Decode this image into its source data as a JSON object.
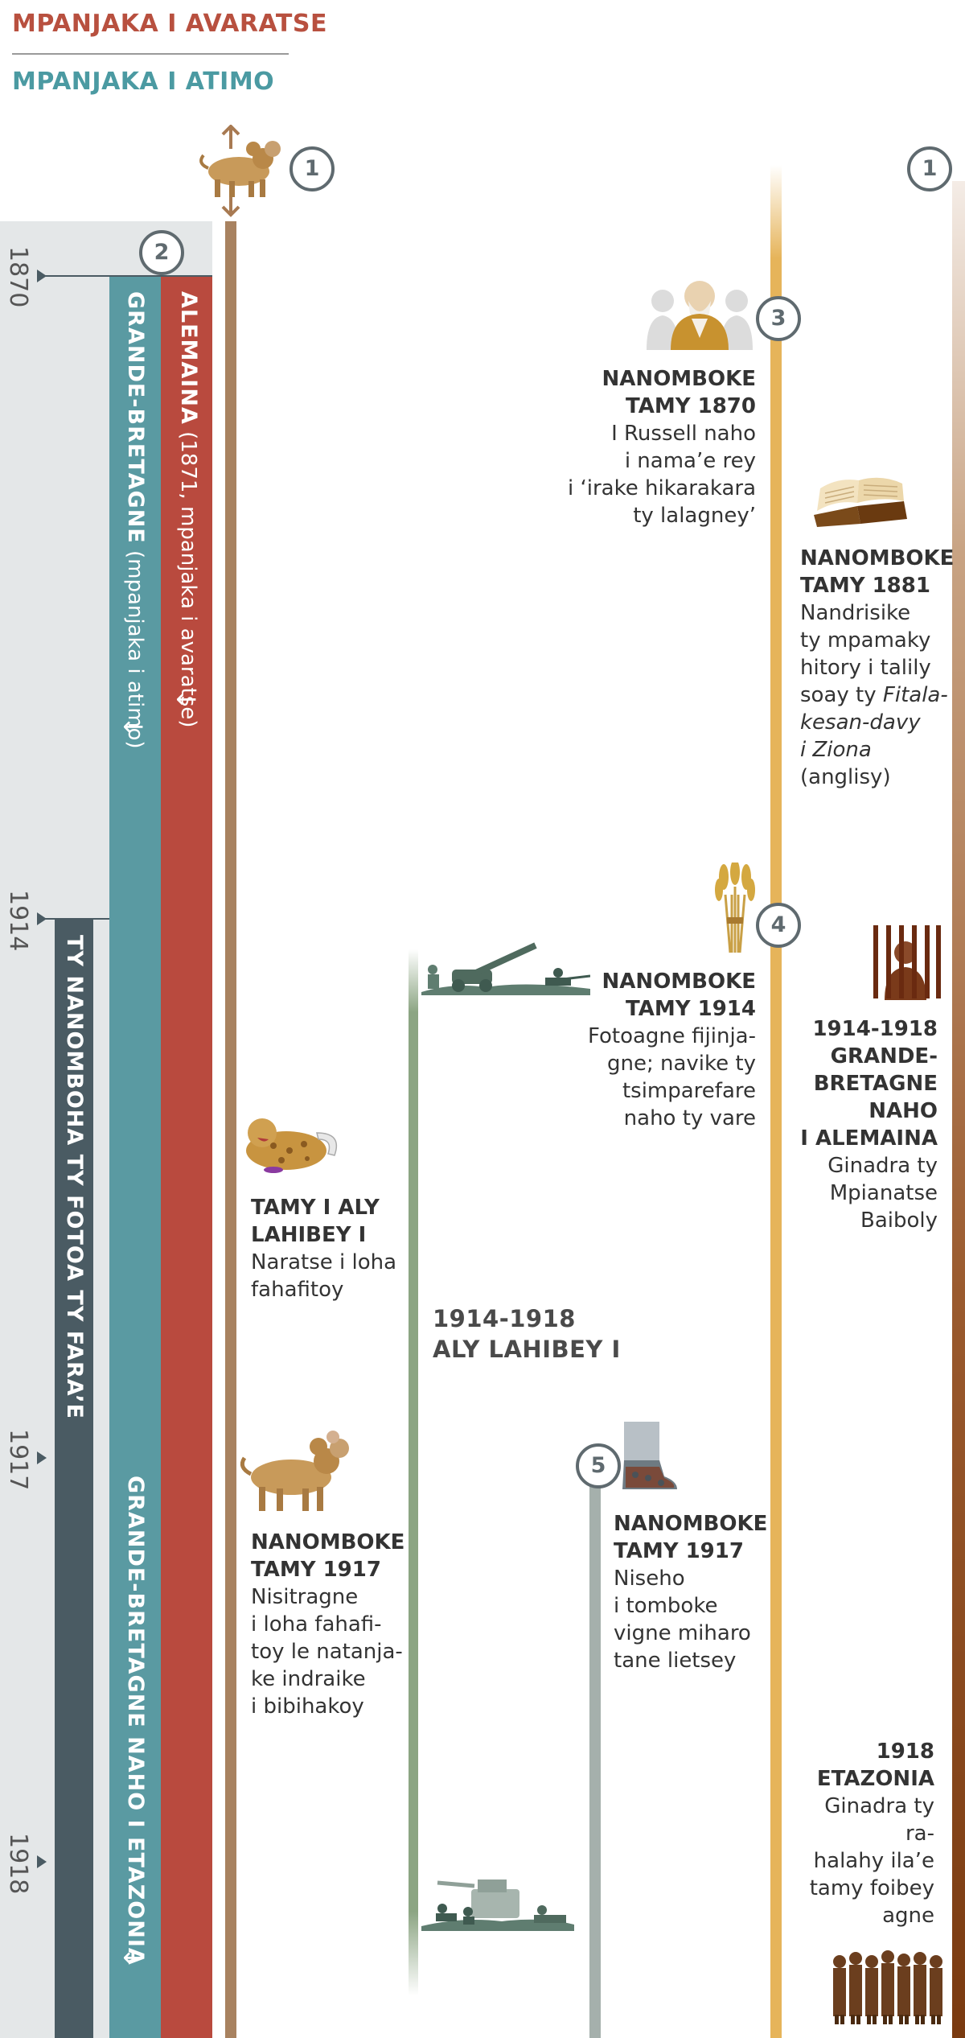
{
  "legend": {
    "king_south": "MPANJAKA I AVARATSE",
    "king_north": "MPANJAKA I ATIMO"
  },
  "years": {
    "y1870": "1870",
    "y1914": "1914",
    "y1917": "1917",
    "y1918": "1918"
  },
  "markers": {
    "m1a": "1",
    "m1b": "1",
    "m2": "2",
    "m3": "3",
    "m4": "4",
    "m5": "5"
  },
  "bars": {
    "germany_bold": "ALEMAINA",
    "germany_rest": " (1871, mpanjaka i avaratse)",
    "gb_bold": "GRANDE-BRETAGNE",
    "gb_rest": " (mpanjaka i atimo)",
    "last_days": "TY NANOMBOHA TY FOTOA TY FARA’E",
    "gb_us": "GRANDE-BRETAGNE NAHO I ETAZONIA",
    "arrow": "↓"
  },
  "events": {
    "e1870": {
      "title": [
        "NANOMBOKE",
        "TAMY 1870"
      ],
      "text": [
        "I Russell naho",
        "i nama’e rey",
        "i ‘irake hikarakara",
        "ty lalagney’"
      ]
    },
    "e1881": {
      "title": [
        "NANOMBOKE",
        "TAMY 1881"
      ],
      "text_plain": [
        "Nandrisike",
        "ty mpamaky",
        "hitory i talily",
        "soay ty "
      ],
      "text_italic1": "Fitala-",
      "text_italic2": "kesan-davy",
      "text_italic3": "i Ziona",
      "text_end": "(anglisy)"
    },
    "e1914": {
      "title": [
        "NANOMBOKE",
        "TAMY 1914"
      ],
      "text": [
        "Fotoagne fijinja-",
        "gne; navike ty",
        "tsimparefare",
        "naho ty vare"
      ]
    },
    "e1914_1918_gb": {
      "title": [
        "1914-1918",
        "GRANDE-",
        "BRETAGNE",
        "NAHO",
        "I ALEMAINA"
      ],
      "text": [
        "Ginadra ty",
        "Mpianatse",
        "Baiboly"
      ]
    },
    "ww1_period": {
      "title": [
        "1914-1918",
        "ALY LAHIBEY I"
      ]
    },
    "ww1_start": {
      "title": [
        "TAMY I ALY",
        "LAHIBEY I"
      ],
      "text": [
        "Naratse i loha",
        "fahafitoy"
      ]
    },
    "e1917_beast": {
      "title": [
        "NANOMBOKE",
        "TAMY 1917"
      ],
      "text": [
        "Nisitragne",
        "i loha fahafi-",
        "toy le natanja-",
        "ke indraike",
        "i bibihakoy"
      ]
    },
    "e1917_feet": {
      "title": [
        "NANOMBOKE",
        "TAMY 1917"
      ],
      "text": [
        "Niseho",
        "i tomboke",
        "vigne miharo",
        "tane lietsey"
      ]
    },
    "e1918": {
      "title": [
        "1918",
        "ETAZONIA"
      ],
      "text": [
        "Ginadra ty ra-",
        "halahy ila’e",
        "tamy foibey",
        "agne"
      ]
    }
  },
  "icons": [
    "beast-icon",
    "russell-portrait-icon",
    "bible-icon",
    "wheat-icon",
    "prisoner-icon",
    "soldiers-icon",
    "wounded-beast-icon",
    "feet-icon",
    "crowd-icon"
  ],
  "colors": {
    "red": "#b94a3e",
    "teal": "#5a9aa2",
    "dark": "#4a5b63",
    "gold": "#e6b45a",
    "brown": "#a88260",
    "green": "#8ca583"
  }
}
